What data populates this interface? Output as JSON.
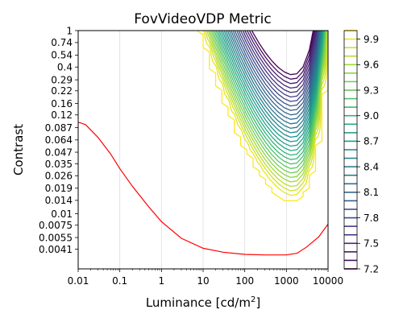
{
  "chart_data": {
    "type": "contour",
    "title": "FovVideoVDP Metric",
    "xlabel_main": "Luminance [cd/m",
    "xlabel_sup": "2",
    "xlabel_end": "]",
    "ylabel": "Contrast",
    "x_scale": "log",
    "y_scale": "log",
    "xlim": [
      0.01,
      10000
    ],
    "ylim": [
      0.0025,
      1
    ],
    "x_ticks": [
      {
        "value": 0.01,
        "label": "0.01"
      },
      {
        "value": 0.1,
        "label": "0.1"
      },
      {
        "value": 1,
        "label": "1"
      },
      {
        "value": 10,
        "label": "10"
      },
      {
        "value": 100,
        "label": "100"
      },
      {
        "value": 1000,
        "label": "1000"
      },
      {
        "value": 10000,
        "label": "10000"
      }
    ],
    "y_ticks": [
      {
        "value": 1,
        "label": "1"
      },
      {
        "value": 0.74,
        "label": "0.74"
      },
      {
        "value": 0.54,
        "label": "0.54"
      },
      {
        "value": 0.4,
        "label": "0.4"
      },
      {
        "value": 0.29,
        "label": "0.29"
      },
      {
        "value": 0.22,
        "label": "0.22"
      },
      {
        "value": 0.16,
        "label": "0.16"
      },
      {
        "value": 0.12,
        "label": "0.12"
      },
      {
        "value": 0.087,
        "label": "0.087"
      },
      {
        "value": 0.064,
        "label": "0.064"
      },
      {
        "value": 0.047,
        "label": "0.047"
      },
      {
        "value": 0.035,
        "label": "0.035"
      },
      {
        "value": 0.026,
        "label": "0.026"
      },
      {
        "value": 0.019,
        "label": "0.019"
      },
      {
        "value": 0.014,
        "label": "0.014"
      },
      {
        "value": 0.01,
        "label": "0.01"
      },
      {
        "value": 0.0075,
        "label": "0.0075"
      },
      {
        "value": 0.0055,
        "label": "0.0055"
      },
      {
        "value": 0.0041,
        "label": "0.0041"
      }
    ],
    "vertical_grid": true,
    "colormap": "viridis",
    "colorbar": {
      "min": 7.2,
      "max": 10.0,
      "ticks": [
        {
          "value": 9.9,
          "label": "9.9"
        },
        {
          "value": 9.6,
          "label": "9.6"
        },
        {
          "value": 9.3,
          "label": "9.3"
        },
        {
          "value": 9.0,
          "label": "9.0"
        },
        {
          "value": 8.7,
          "label": "8.7"
        },
        {
          "value": 8.4,
          "label": "8.4"
        },
        {
          "value": 8.1,
          "label": "8.1"
        },
        {
          "value": 7.8,
          "label": "7.8"
        },
        {
          "value": 7.5,
          "label": "7.5"
        },
        {
          "value": 7.2,
          "label": "7.2"
        }
      ]
    },
    "contour_levels": [
      10.0,
      9.9,
      9.8,
      9.7,
      9.6,
      9.5,
      9.4,
      9.3,
      9.2,
      9.1,
      9.0,
      8.9,
      8.8,
      8.7,
      8.6,
      8.5,
      8.4,
      8.3,
      8.2,
      8.1,
      8.0,
      7.9,
      7.8,
      7.7,
      7.6,
      7.5,
      7.4,
      7.3,
      7.2
    ],
    "threshold_curve": {
      "color": "#ff0000",
      "points": [
        [
          0.01,
          0.1
        ],
        [
          0.015,
          0.094
        ],
        [
          0.03,
          0.068
        ],
        [
          0.06,
          0.045
        ],
        [
          0.1,
          0.031
        ],
        [
          0.2,
          0.02
        ],
        [
          0.5,
          0.0118
        ],
        [
          1,
          0.0082
        ],
        [
          3,
          0.0054
        ],
        [
          10,
          0.0042
        ],
        [
          30,
          0.0038
        ],
        [
          100,
          0.0036
        ],
        [
          300,
          0.00355
        ],
        [
          1000,
          0.00355
        ],
        [
          1800,
          0.0037
        ],
        [
          3000,
          0.0043
        ],
        [
          6000,
          0.0056
        ],
        [
          10000,
          0.0077
        ]
      ]
    }
  }
}
